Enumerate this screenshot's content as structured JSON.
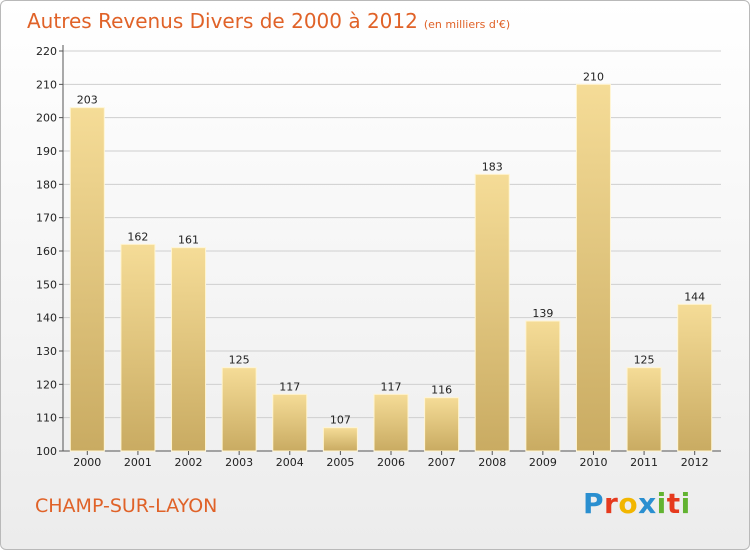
{
  "title": "Autres Revenus Divers de 2000 à 2012",
  "title_unit": "(en milliers d'€)",
  "location": "CHAMP-SUR-LAYON",
  "brand": {
    "letters": [
      "P",
      "r",
      "o",
      "x",
      "i",
      "t",
      "i"
    ],
    "colors": [
      "#2a8fd0",
      "#e63a1e",
      "#f2b600",
      "#2a8fd0",
      "#62b331",
      "#e63a1e",
      "#62b331"
    ]
  },
  "colors": {
    "accent": "#e06228",
    "bar_light": "#f5dc97",
    "bar_dark": "#c9ab62",
    "grid": "#cfcfcf"
  },
  "chart_data": {
    "type": "bar",
    "title": "Autres Revenus Divers de 2000 à 2012",
    "categories": [
      "2000",
      "2001",
      "2002",
      "2003",
      "2004",
      "2005",
      "2006",
      "2007",
      "2008",
      "2009",
      "2010",
      "2011",
      "2012"
    ],
    "values": [
      203,
      162,
      161,
      125,
      117,
      107,
      117,
      116,
      183,
      139,
      210,
      125,
      144
    ],
    "yticks": [
      100,
      110,
      120,
      130,
      140,
      150,
      160,
      170,
      180,
      190,
      200,
      210,
      220
    ],
    "ylim": [
      100,
      220
    ],
    "xlabel": "",
    "ylabel": "",
    "grid": true,
    "legend": "none"
  }
}
